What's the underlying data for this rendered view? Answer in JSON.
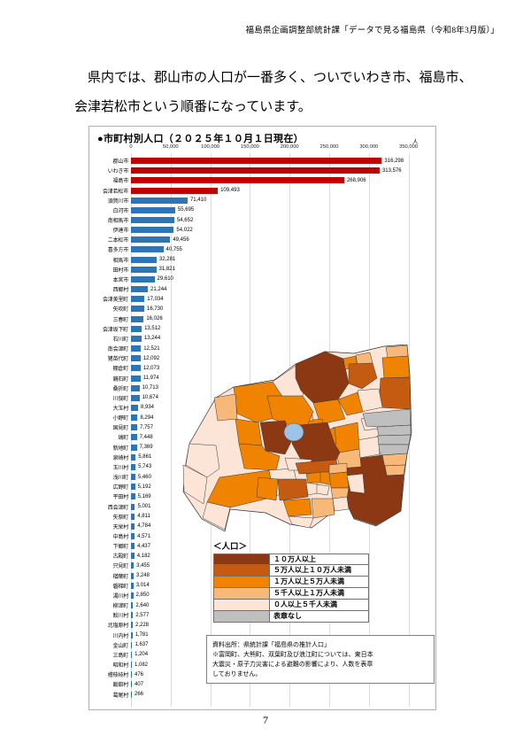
{
  "page": {
    "header_credit": "福島県企画調整部統計課「データで見る福島県（令和8年3月版）」",
    "body_text_line1": "　県内では、郡山市の人口が一番多く、ついでいわき市、福島市、",
    "body_text_line2": "会津若松市という順番になっています。",
    "page_number": "7"
  },
  "chart_data": {
    "type": "bar",
    "orientation": "horizontal",
    "title": "●市町村別人口（２０２５年１０月１日現在）",
    "unit_label": "人",
    "xlim": [
      0,
      350000
    ],
    "x_ticks": [
      "0",
      "50,000",
      "100,000",
      "150,000",
      "200,000",
      "250,000",
      "300,000",
      "350,000"
    ],
    "grid": "vertical",
    "categories": [
      "郡山市",
      "いわき市",
      "福島市",
      "会津若松市",
      "須賀川市",
      "白河市",
      "南相馬市",
      "伊達市",
      "二本松市",
      "喜多方市",
      "相馬市",
      "田村市",
      "本宮市",
      "西郷村",
      "会津美里町",
      "矢吹町",
      "三春町",
      "会津坂下町",
      "石川町",
      "南会津町",
      "猪苗代町",
      "棚倉町",
      "鏡石町",
      "桑折町",
      "川俣町",
      "大玉村",
      "小野町",
      "国見町",
      "塙町",
      "新地町",
      "泉崎村",
      "玉川村",
      "浅川町",
      "広野町",
      "平田村",
      "西会津町",
      "矢祭町",
      "天栄村",
      "中島村",
      "下郷町",
      "古殿町",
      "只見町",
      "楢葉町",
      "磐梯町",
      "湯川村",
      "柳津町",
      "鮫川村",
      "北塩原村",
      "川内村",
      "金山町",
      "三島町",
      "昭和村",
      "檜枝岐村",
      "飯舘村",
      "葛尾村"
    ],
    "values": [
      316298,
      313576,
      268906,
      109493,
      71410,
      55695,
      54652,
      54022,
      49456,
      40755,
      32281,
      31821,
      29610,
      21244,
      17034,
      16730,
      16026,
      13512,
      13244,
      12521,
      12092,
      12073,
      11974,
      10713,
      10674,
      8934,
      8294,
      7757,
      7448,
      7369,
      5861,
      5743,
      5460,
      5192,
      5169,
      5001,
      4811,
      4784,
      4571,
      4437,
      4182,
      3455,
      3248,
      3014,
      2850,
      2640,
      2577,
      2228,
      1781,
      1637,
      1204,
      1082,
      476,
      407,
      266
    ],
    "bar_colors": {
      "large": "#C00000",
      "small": "#2E75B6",
      "large_threshold": 100000
    },
    "gridline_color": "#DCDCDC"
  },
  "map": {
    "legend_title": "＜人口＞",
    "legend": [
      {
        "label": "１０万人以上",
        "color": "#8C3913"
      },
      {
        "label": "５万人以上１０万人未満",
        "color": "#C55A11"
      },
      {
        "label": "１万人以上５万人未満",
        "color": "#F08300"
      },
      {
        "label": "５千人以上１万人未満",
        "color": "#F8B878"
      },
      {
        "label": "０人以上５千人未満",
        "color": "#FCE4D6"
      },
      {
        "label": "表章なし",
        "color": "#BFBFBF"
      }
    ],
    "lake_color": "#9DC3E6",
    "note_lines": [
      "資料出所：県統計課「福島県の推計人口」",
      "※富岡町、大熊町、双葉町及び浪江町については、東日本",
      "大震災・原子力災害による避難の影響により、人数を表章",
      "しておりません。"
    ]
  }
}
